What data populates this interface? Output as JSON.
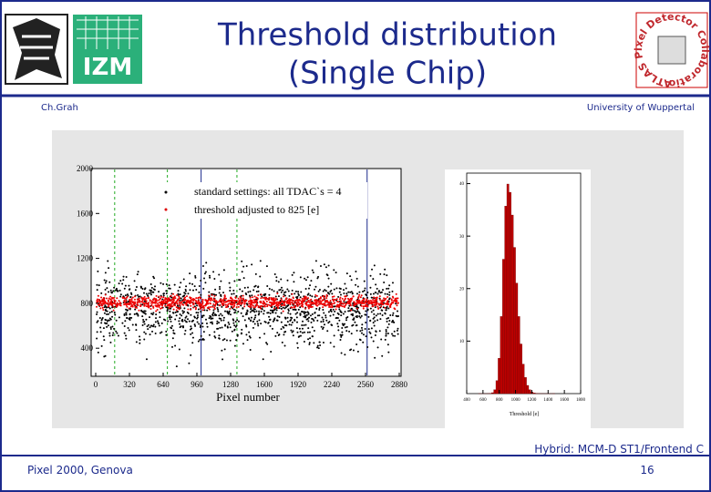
{
  "header": {
    "title_lines": [
      "Threshold distribution",
      "(Single Chip)"
    ],
    "author": "Ch.Grah",
    "affiliation": "University of Wuppertal",
    "left_logo_text": "IZM",
    "right_logo_text": "ATLAS Pixel Detector Collaboration"
  },
  "figure": {
    "scatter": {
      "type": "scatter",
      "x_label": "Pixel number",
      "legend": [
        "standard settings: all TDAC`s = 4",
        "threshold adjusted to 825 [e]"
      ],
      "xlim": [
        0,
        2880
      ],
      "ylim": [
        150,
        2000
      ],
      "xticks": [
        0,
        320,
        640,
        960,
        1280,
        1600,
        1920,
        2240,
        2560,
        2880
      ],
      "yticks": [
        400,
        800,
        1200,
        1600,
        2000
      ]
    },
    "histogram": {
      "type": "histogram",
      "x_label": "Threshold [e]",
      "xlim": [
        400,
        1800
      ],
      "ylim": [
        0,
        42
      ],
      "xticks": [
        400,
        600,
        800,
        1000,
        1200,
        1400,
        1600,
        1800
      ],
      "yticks": [
        10,
        20,
        30,
        40
      ]
    }
  },
  "footer": {
    "caption": "Hybrid: MCM-D ST1/Frontend C",
    "event": "Pixel 2000, Genova",
    "page": "16"
  }
}
